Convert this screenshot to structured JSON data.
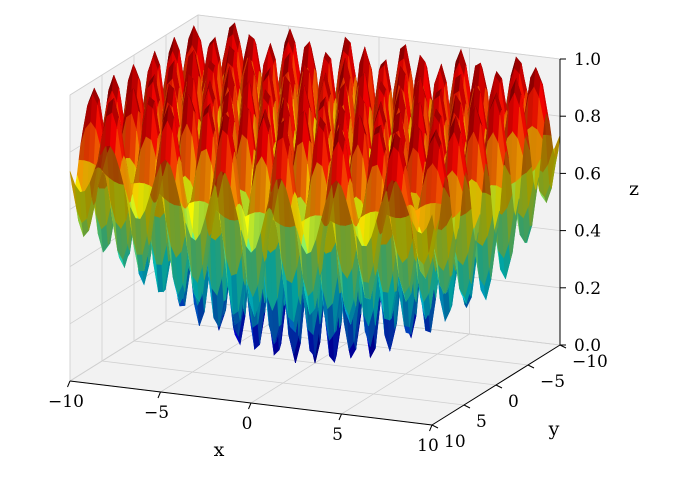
{
  "chart_data": {
    "type": "surface3d",
    "function": "z = 1 - exp(-(x^2 + y^2)/256) * (1 + cos(2x) * cos(2y)) / 2",
    "x_range": [
      -10,
      10
    ],
    "y_range": [
      -10,
      10
    ],
    "z_range": [
      0,
      1
    ],
    "xlabel": "x",
    "ylabel": "y",
    "zlabel": "z",
    "x_ticks": [
      -10,
      -5,
      0,
      5,
      10
    ],
    "y_ticks": [
      -10,
      -5,
      0,
      5,
      10
    ],
    "z_ticks": [
      0.0,
      0.2,
      0.4,
      0.6,
      0.8,
      1.0
    ],
    "x_tick_labels": [
      "−10",
      "−5",
      "0",
      "5",
      "10"
    ],
    "y_tick_labels": [
      "−10",
      "−5",
      "0",
      "5",
      "10"
    ],
    "z_tick_labels": [
      "0.0",
      "0.2",
      "0.4",
      "0.6",
      "0.8",
      "1.0"
    ],
    "colormap": "jet",
    "grid": true,
    "pane_color": "#f2f2f2",
    "grid_color": "#d0d0d0"
  }
}
